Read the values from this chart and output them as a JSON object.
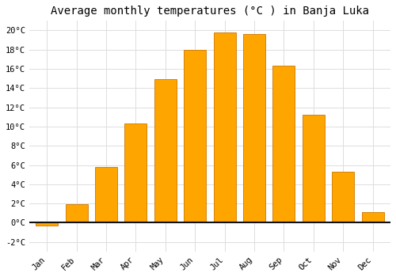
{
  "months": [
    "Jan",
    "Feb",
    "Mar",
    "Apr",
    "May",
    "Jun",
    "Jul",
    "Aug",
    "Sep",
    "Oct",
    "Nov",
    "Dec"
  ],
  "values": [
    -0.3,
    1.9,
    5.8,
    10.3,
    14.9,
    18.0,
    19.8,
    19.6,
    16.3,
    11.2,
    5.3,
    1.1
  ],
  "bar_color": "#FFA500",
  "bar_edge_color": "#CC7700",
  "title": "Average monthly temperatures (°C ) in Banja Luka",
  "title_fontsize": 10,
  "ylabel_ticks": [
    "-2°C",
    "0°C",
    "2°C",
    "4°C",
    "6°C",
    "8°C",
    "10°C",
    "12°C",
    "14°C",
    "16°C",
    "18°C",
    "20°C"
  ],
  "ytick_values": [
    -2,
    0,
    2,
    4,
    6,
    8,
    10,
    12,
    14,
    16,
    18,
    20
  ],
  "ylim": [
    -3,
    21
  ],
  "background_color": "#FFFFFF",
  "grid_color": "#DDDDDD",
  "zero_line_color": "#111111",
  "tick_label_fontsize": 7.5,
  "bar_width": 0.75
}
